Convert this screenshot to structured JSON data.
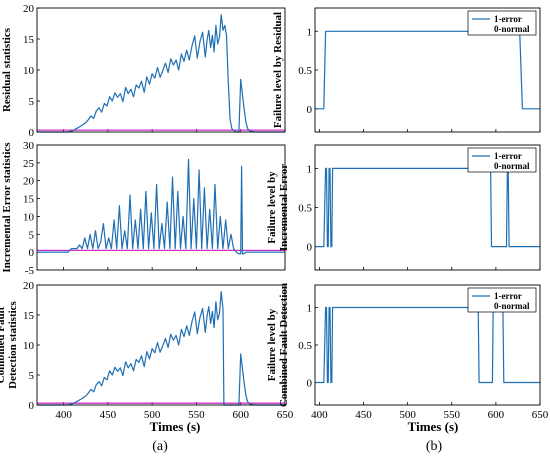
{
  "colors": {
    "signal": "#1f6fb4",
    "threshold": "#cc33cc",
    "axis": "#000000"
  },
  "captions": {
    "left": "(a)",
    "right": "(b)"
  },
  "legend": {
    "line1": "1-error",
    "line2": "0-normal"
  },
  "chart_data": [
    {
      "type": "line",
      "column": "left",
      "row": 0,
      "ylabel": [
        "Residual statistics"
      ],
      "xlim": [
        370,
        650
      ],
      "ylim": [
        0,
        20
      ],
      "yticks": [
        0,
        5,
        10,
        15,
        20
      ],
      "xticks": [
        400,
        450,
        500,
        550,
        600,
        650
      ],
      "show_xticklabels": false,
      "threshold": 0.3,
      "series": [
        {
          "x": [
            370,
            390,
            405,
            410,
            415,
            420,
            425,
            428,
            431,
            434,
            437,
            440,
            443,
            446,
            449,
            452,
            455,
            458,
            461,
            464,
            467,
            470,
            473,
            476,
            479,
            482,
            485,
            488,
            491,
            494,
            497,
            500,
            503,
            506,
            509,
            512,
            515,
            518,
            521,
            524,
            527,
            530,
            533,
            536,
            539,
            542,
            545,
            548,
            551,
            554,
            557,
            560,
            562,
            564,
            566,
            568,
            570,
            572,
            574,
            576,
            578,
            580,
            582,
            584,
            586,
            588,
            590,
            595,
            598,
            600,
            602,
            604,
            606,
            608,
            610,
            615,
            650
          ],
          "y": [
            0,
            0,
            0,
            0.2,
            0.6,
            1.0,
            1.5,
            2.0,
            2.6,
            2.2,
            3.4,
            3.9,
            3.2,
            4.6,
            4.2,
            5.7,
            5.0,
            6.3,
            5.6,
            6.2,
            4.9,
            7.2,
            6.2,
            6.9,
            5.7,
            7.6,
            7.1,
            8.2,
            6.4,
            8.9,
            7.7,
            9.4,
            8.7,
            10.4,
            8.8,
            9.9,
            11.1,
            9.6,
            11.8,
            10.8,
            11.6,
            10.0,
            12.6,
            11.4,
            13.2,
            11.6,
            13.9,
            15.5,
            11.9,
            14.6,
            16.1,
            12.1,
            14.9,
            16.4,
            13.6,
            15.6,
            12.9,
            17.2,
            14.2,
            15.3,
            18.9,
            16.4,
            17.2,
            15.6,
            8.0,
            2.0,
            0.5,
            0,
            0,
            8.5,
            6.0,
            3.5,
            1.5,
            0.5,
            0.2,
            0,
            0
          ]
        }
      ]
    },
    {
      "type": "line",
      "column": "left",
      "row": 1,
      "ylabel": [
        "Incremental Error statistics"
      ],
      "xlim": [
        370,
        650
      ],
      "ylim": [
        -5,
        30
      ],
      "yticks": [
        -5,
        0,
        5,
        10,
        15,
        20,
        25,
        30
      ],
      "xticks": [
        400,
        450,
        500,
        550,
        600,
        650
      ],
      "show_xticklabels": false,
      "threshold": 0.5,
      "series": [
        {
          "x": [
            370,
            400,
            405,
            409,
            412,
            415,
            418,
            421,
            424,
            427,
            430,
            433,
            436,
            439,
            442,
            445,
            448,
            451,
            454,
            457,
            460,
            463,
            466,
            469,
            472,
            475,
            478,
            481,
            484,
            487,
            490,
            493,
            496,
            499,
            502,
            505,
            508,
            511,
            514,
            517,
            520,
            523,
            526,
            529,
            532,
            535,
            538,
            541,
            544,
            547,
            550,
            553,
            556,
            559,
            562,
            565,
            568,
            571,
            574,
            577,
            580,
            583,
            586,
            589,
            592,
            595,
            598,
            600,
            601,
            602,
            603,
            606,
            650
          ],
          "y": [
            0,
            0,
            0,
            1,
            1,
            1,
            2,
            1,
            4,
            1,
            5,
            1,
            6,
            1,
            3,
            8,
            1,
            4,
            1,
            9,
            1,
            13,
            1,
            6,
            1,
            16,
            1,
            9,
            1,
            12,
            1,
            17,
            1,
            11,
            1,
            19,
            1,
            8,
            1,
            14,
            1,
            21,
            1,
            17,
            1,
            10,
            1,
            26,
            1,
            15,
            1,
            23,
            1,
            18,
            1,
            12,
            1,
            19,
            1,
            10,
            1,
            9,
            1,
            5,
            1,
            0,
            -0.5,
            -0.5,
            24,
            -0.5,
            -0.5,
            0,
            0
          ]
        }
      ]
    },
    {
      "type": "line",
      "column": "left",
      "row": 2,
      "ylabel": [
        "Combined Fault",
        "Detection statistics"
      ],
      "xlim": [
        370,
        650
      ],
      "ylim": [
        0,
        20
      ],
      "yticks": [
        0,
        5,
        10,
        15,
        20
      ],
      "xticks": [
        400,
        450,
        500,
        550,
        600,
        650
      ],
      "show_xticklabels": true,
      "threshold": 0.3,
      "series": [
        {
          "x": [
            370,
            390,
            405,
            410,
            415,
            420,
            425,
            428,
            431,
            434,
            437,
            440,
            443,
            446,
            449,
            452,
            455,
            458,
            461,
            464,
            467,
            470,
            473,
            476,
            479,
            482,
            485,
            488,
            491,
            494,
            497,
            500,
            503,
            506,
            509,
            512,
            515,
            518,
            521,
            524,
            527,
            530,
            533,
            536,
            539,
            542,
            545,
            548,
            551,
            554,
            557,
            560,
            562,
            564,
            566,
            568,
            570,
            572,
            574,
            576,
            578,
            580,
            581,
            595,
            598,
            600,
            602,
            604,
            606,
            608,
            610,
            615,
            650
          ],
          "y": [
            0,
            0,
            0,
            0.2,
            0.6,
            1.0,
            1.5,
            2.0,
            2.6,
            2.2,
            3.4,
            3.9,
            3.2,
            4.6,
            4.2,
            5.7,
            5.0,
            6.3,
            5.6,
            6.2,
            4.9,
            7.2,
            6.2,
            6.9,
            5.7,
            7.6,
            7.1,
            8.2,
            6.4,
            8.9,
            7.7,
            9.4,
            8.7,
            10.4,
            8.8,
            9.9,
            11.1,
            9.6,
            11.8,
            10.8,
            11.6,
            10.0,
            12.6,
            11.4,
            13.2,
            11.6,
            13.9,
            15.5,
            11.9,
            14.6,
            16.1,
            12.1,
            14.9,
            16.4,
            13.6,
            15.6,
            12.9,
            17.2,
            14.2,
            15.3,
            18.9,
            16.0,
            0,
            0,
            0,
            8.5,
            6.0,
            3.5,
            1.5,
            0.5,
            0.2,
            0,
            0
          ]
        }
      ]
    },
    {
      "type": "line",
      "column": "right",
      "row": 0,
      "ylabel": [
        "Failure level by Residual"
      ],
      "xlim": [
        395,
        650
      ],
      "ylim": [
        -0.3,
        1.3
      ],
      "yticks": [
        0,
        0.5,
        1
      ],
      "xticks": [
        400,
        450,
        500,
        550,
        600,
        650
      ],
      "show_xticklabels": false,
      "legend": true,
      "series": [
        {
          "x": [
            395,
            405,
            407,
            627,
            630,
            650
          ],
          "y": [
            0,
            0,
            1,
            1,
            0,
            0
          ]
        }
      ]
    },
    {
      "type": "line",
      "column": "right",
      "row": 1,
      "ylabel": [
        "Failure level by",
        "Incremental Error"
      ],
      "xlim": [
        395,
        650
      ],
      "ylim": [
        -0.3,
        1.3
      ],
      "yticks": [
        0,
        0.5,
        1
      ],
      "xticks": [
        400,
        450,
        500,
        550,
        600,
        650
      ],
      "show_xticklabels": false,
      "legend": true,
      "series": [
        {
          "x": [
            395,
            405,
            407,
            408,
            409,
            410,
            411,
            412,
            413,
            414,
            415,
            416,
            594,
            595,
            612,
            613,
            614,
            615,
            616,
            650
          ],
          "y": [
            0,
            0,
            1,
            1,
            0,
            0,
            1,
            1,
            0,
            0,
            1,
            1,
            1,
            0,
            0,
            1,
            1,
            0,
            0,
            0
          ]
        }
      ]
    },
    {
      "type": "line",
      "column": "right",
      "row": 2,
      "ylabel": [
        "Failure level by",
        "Combined Fault Detection"
      ],
      "xlim": [
        395,
        650
      ],
      "ylim": [
        -0.3,
        1.3
      ],
      "yticks": [
        0,
        0.5,
        1
      ],
      "xticks": [
        400,
        450,
        500,
        550,
        600,
        650
      ],
      "show_xticklabels": true,
      "legend": true,
      "series": [
        {
          "x": [
            395,
            405,
            407,
            408,
            409,
            410,
            411,
            412,
            413,
            414,
            415,
            416,
            580,
            581,
            596,
            597,
            608,
            609,
            650
          ],
          "y": [
            0,
            0,
            1,
            1,
            0,
            0,
            1,
            1,
            0,
            0,
            1,
            1,
            1,
            0,
            0,
            1,
            1,
            0,
            0
          ]
        }
      ]
    }
  ],
  "xlabel": "Times (s)"
}
